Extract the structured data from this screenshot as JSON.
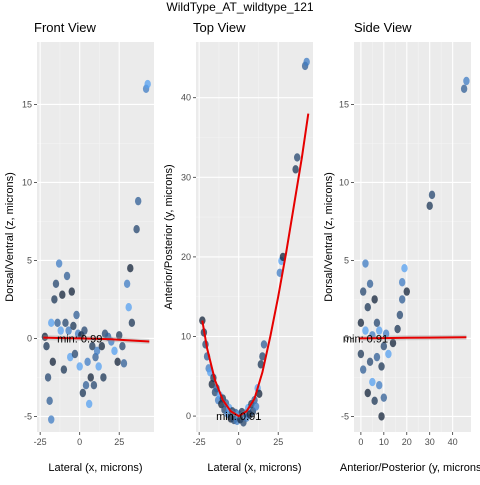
{
  "chart_data": {
    "title": "WildType_AT_wildtype_121",
    "panels": [
      {
        "type": "scatter",
        "title": "Front View",
        "xlabel": "Lateral (x, microns)",
        "ylabel": "Dorsal/Ventral (z, microns)",
        "xlim": [
          -27,
          47
        ],
        "ylim": [
          -6,
          19
        ],
        "xticks": [
          -25,
          0,
          25
        ],
        "yticks": [
          -5,
          0,
          5,
          10,
          15
        ],
        "grid": true,
        "annotation": {
          "text": "min: 0.99",
          "x": 0,
          "y": 0
        },
        "fit": {
          "x": [
            -23,
            -10,
            0,
            10,
            20,
            30,
            44
          ],
          "y": [
            0.05,
            0.02,
            0.0,
            -0.02,
            -0.06,
            -0.12,
            -0.2
          ]
        },
        "points": [
          {
            "x": -22,
            "y": 0.1
          },
          {
            "x": -21,
            "y": -0.5
          },
          {
            "x": -20,
            "y": -2.5
          },
          {
            "x": -19,
            "y": -4.0
          },
          {
            "x": -18,
            "y": -5.2
          },
          {
            "x": -18,
            "y": 1.0
          },
          {
            "x": -17,
            "y": -1.5
          },
          {
            "x": -16,
            "y": 2.5
          },
          {
            "x": -15,
            "y": 3.5
          },
          {
            "x": -14,
            "y": 1.0
          },
          {
            "x": -13,
            "y": 4.8
          },
          {
            "x": -12,
            "y": 0.5
          },
          {
            "x": -11,
            "y": 2.8
          },
          {
            "x": -10,
            "y": -2.0
          },
          {
            "x": -9,
            "y": 1.0
          },
          {
            "x": -8,
            "y": 4.0
          },
          {
            "x": -7,
            "y": 0.5
          },
          {
            "x": -6,
            "y": -1.2
          },
          {
            "x": -5,
            "y": 3.0
          },
          {
            "x": -4,
            "y": 0.8
          },
          {
            "x": -3,
            "y": -1.0
          },
          {
            "x": -2,
            "y": 1.5
          },
          {
            "x": -1,
            "y": 0.3
          },
          {
            "x": 0,
            "y": -1.8
          },
          {
            "x": 1,
            "y": 0.2
          },
          {
            "x": 2,
            "y": -3.5
          },
          {
            "x": 3,
            "y": 0.5
          },
          {
            "x": 4,
            "y": -3.0
          },
          {
            "x": 5,
            "y": -1.5
          },
          {
            "x": 6,
            "y": -4.2
          },
          {
            "x": 7,
            "y": -2.5
          },
          {
            "x": 8,
            "y": -0.5
          },
          {
            "x": 9,
            "y": -3.0
          },
          {
            "x": 10,
            "y": -1.2
          },
          {
            "x": 11,
            "y": -0.8
          },
          {
            "x": 12,
            "y": -1.8
          },
          {
            "x": 14,
            "y": -0.5
          },
          {
            "x": 15,
            "y": -2.5
          },
          {
            "x": 16,
            "y": 0.3
          },
          {
            "x": 18,
            "y": 0.1
          },
          {
            "x": 20,
            "y": -0.2
          },
          {
            "x": 22,
            "y": -0.8
          },
          {
            "x": 24,
            "y": -1.5
          },
          {
            "x": 25,
            "y": 0.2
          },
          {
            "x": 27,
            "y": -0.5
          },
          {
            "x": 28,
            "y": -1.6
          },
          {
            "x": 30,
            "y": 3.5
          },
          {
            "x": 31,
            "y": 2.0
          },
          {
            "x": 32,
            "y": 4.5
          },
          {
            "x": 33,
            "y": 1.0
          },
          {
            "x": 36,
            "y": 7.0
          },
          {
            "x": 37,
            "y": 8.8
          },
          {
            "x": 42,
            "y": 16.0
          },
          {
            "x": 43,
            "y": 16.3
          }
        ]
      },
      {
        "type": "scatter",
        "title": "Top View",
        "xlabel": "Lateral (x, microns)",
        "ylabel": "Anterior/Posterior (y, microns)",
        "xlim": [
          -27,
          47
        ],
        "ylim": [
          -2,
          47
        ],
        "xticks": [
          -25,
          0,
          25
        ],
        "yticks": [
          0,
          10,
          20,
          30,
          40
        ],
        "grid": true,
        "annotation": {
          "text": "min: 0.91",
          "x": 0,
          "y": 0
        },
        "fit": {
          "x": [
            -23,
            -20,
            -15,
            -10,
            -5,
            0,
            5,
            10,
            15,
            20,
            25,
            30,
            35,
            40,
            44
          ],
          "y": [
            12,
            8.5,
            4.5,
            2.0,
            0.6,
            0.0,
            0.6,
            2.2,
            5.5,
            10.0,
            15.0,
            20.5,
            26.5,
            32.5,
            38.0
          ]
        },
        "points": [
          {
            "x": -23,
            "y": 12.0
          },
          {
            "x": -22,
            "y": 10.5
          },
          {
            "x": -21,
            "y": 9.0
          },
          {
            "x": -20,
            "y": 7.5
          },
          {
            "x": -19,
            "y": 6.0
          },
          {
            "x": -18,
            "y": 5.5
          },
          {
            "x": -17,
            "y": 4.0
          },
          {
            "x": -16,
            "y": 4.8
          },
          {
            "x": -15,
            "y": 3.0
          },
          {
            "x": -14,
            "y": 3.5
          },
          {
            "x": -13,
            "y": 2.0
          },
          {
            "x": -12,
            "y": 2.6
          },
          {
            "x": -11,
            "y": 1.5
          },
          {
            "x": -10,
            "y": 2.2
          },
          {
            "x": -9,
            "y": 0.8
          },
          {
            "x": -8,
            "y": 1.6
          },
          {
            "x": -7,
            "y": 0.3
          },
          {
            "x": -6,
            "y": 1.0
          },
          {
            "x": -5,
            "y": -0.3
          },
          {
            "x": -4,
            "y": 0.6
          },
          {
            "x": -3,
            "y": -0.5
          },
          {
            "x": -2,
            "y": 0.4
          },
          {
            "x": -1,
            "y": -0.6
          },
          {
            "x": 0,
            "y": 0.2
          },
          {
            "x": 1,
            "y": -0.4
          },
          {
            "x": 2,
            "y": 0.5
          },
          {
            "x": 3,
            "y": -0.8
          },
          {
            "x": 4,
            "y": 0.3
          },
          {
            "x": 5,
            "y": -0.2
          },
          {
            "x": 6,
            "y": 1.0
          },
          {
            "x": 7,
            "y": 0.2
          },
          {
            "x": 8,
            "y": 1.5
          },
          {
            "x": 9,
            "y": 0.6
          },
          {
            "x": 10,
            "y": 2.0
          },
          {
            "x": 11,
            "y": 1.2
          },
          {
            "x": 12,
            "y": 3.5
          },
          {
            "x": 13,
            "y": 2.8
          },
          {
            "x": 14,
            "y": 6.5
          },
          {
            "x": 15,
            "y": 7.5
          },
          {
            "x": 16,
            "y": 9.0
          },
          {
            "x": 26,
            "y": 18.0
          },
          {
            "x": 27,
            "y": 19.5
          },
          {
            "x": 28,
            "y": 20.0
          },
          {
            "x": 36,
            "y": 31.0
          },
          {
            "x": 37,
            "y": 32.5
          },
          {
            "x": 42,
            "y": 44.0
          },
          {
            "x": 43,
            "y": 44.5
          }
        ]
      },
      {
        "type": "scatter",
        "title": "Side View",
        "xlabel": "Anterior/Posterior (y, microns)",
        "ylabel": "Dorsal/Ventral (z, microns)",
        "xlim": [
          -3,
          48
        ],
        "ylim": [
          -6,
          19
        ],
        "xticks": [
          0,
          10,
          20,
          30,
          40
        ],
        "yticks": [
          -5,
          0,
          5,
          10,
          15
        ],
        "grid": true,
        "annotation": {
          "text": "min: 0.91",
          "x": 2,
          "y": 0
        },
        "fit": {
          "x": [
            -1,
            10,
            20,
            30,
            46
          ],
          "y": [
            0.0,
            0.02,
            0.04,
            0.05,
            0.07
          ]
        },
        "points": [
          {
            "x": 0,
            "y": 1.0
          },
          {
            "x": 0,
            "y": -1.0
          },
          {
            "x": 1,
            "y": 3.0
          },
          {
            "x": 1,
            "y": -2.0
          },
          {
            "x": 2,
            "y": 4.8
          },
          {
            "x": 2,
            "y": 0.5
          },
          {
            "x": 3,
            "y": -3.5
          },
          {
            "x": 3,
            "y": 2.0
          },
          {
            "x": 4,
            "y": -1.5
          },
          {
            "x": 4,
            "y": 3.5
          },
          {
            "x": 5,
            "y": 0.2
          },
          {
            "x": 5,
            "y": -2.8
          },
          {
            "x": 6,
            "y": 2.5
          },
          {
            "x": 6,
            "y": -4.0
          },
          {
            "x": 7,
            "y": 1.0
          },
          {
            "x": 7,
            "y": -1.2
          },
          {
            "x": 8,
            "y": -3.0
          },
          {
            "x": 8,
            "y": 0.5
          },
          {
            "x": 9,
            "y": -5.0
          },
          {
            "x": 9,
            "y": -1.8
          },
          {
            "x": 10,
            "y": -0.5
          },
          {
            "x": 10,
            "y": -3.8
          },
          {
            "x": 11,
            "y": 0.3
          },
          {
            "x": 12,
            "y": -1.0
          },
          {
            "x": 14,
            "y": -0.3
          },
          {
            "x": 16,
            "y": 0.6
          },
          {
            "x": 17,
            "y": 1.5
          },
          {
            "x": 18,
            "y": 2.5
          },
          {
            "x": 18,
            "y": 3.6
          },
          {
            "x": 19,
            "y": 4.5
          },
          {
            "x": 20,
            "y": 3.0
          },
          {
            "x": 30,
            "y": 8.5
          },
          {
            "x": 31,
            "y": 9.2
          },
          {
            "x": 45,
            "y": 16.0
          },
          {
            "x": 46,
            "y": 16.5
          }
        ]
      }
    ]
  }
}
